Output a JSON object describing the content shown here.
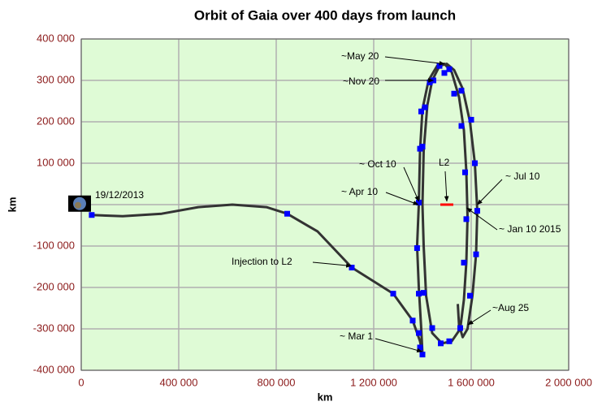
{
  "chart_data": {
    "type": "line",
    "title": "Orbit of Gaia over 400 days from launch",
    "xlabel": "km",
    "ylabel": "km",
    "xlim": [
      0,
      2000000
    ],
    "ylim": [
      -400000,
      400000
    ],
    "xticks": [
      0,
      {
        "value": 400000,
        "label": "400 000"
      },
      {
        "value": 800000,
        "label": "800 000"
      },
      {
        "value": 1200000,
        "label": "1 200 000"
      },
      {
        "value": 1600000,
        "label": "1 600 000"
      },
      {
        "value": 2000000,
        "label": "2 000 000"
      }
    ],
    "yticks": [
      {
        "value": -400000,
        "label": "-400 000"
      },
      {
        "value": -300000,
        "label": "-300 000"
      },
      {
        "value": -200000,
        "label": "-200 000"
      },
      {
        "value": -100000,
        "label": "-100 000"
      },
      0,
      {
        "value": 100000,
        "label": "100 000"
      },
      {
        "value": 200000,
        "label": "200 000"
      },
      {
        "value": 300000,
        "label": "300 000"
      },
      {
        "value": 400000,
        "label": "400 000"
      }
    ],
    "grid": true,
    "background": "#dffbd6",
    "series": [
      {
        "color": "#333333",
        "line": true,
        "markers": false,
        "x": [
          40000,
          170000,
          330000,
          480000,
          620000,
          760000,
          845000,
          970000,
          1110000,
          1280000,
          1360000,
          1390000,
          1400000,
          1395000,
          1385000,
          1378000,
          1385000,
          1390000,
          1400000,
          1425000,
          1460000,
          1490000,
          1520000,
          1550000,
          1570000,
          1580000,
          1585000,
          1580000,
          1570000,
          1555000,
          1520000,
          1480000,
          1440000,
          1415000,
          1405000,
          1400000,
          1405000,
          1420000,
          1440000,
          1470000,
          1500000,
          1530000,
          1565000,
          1595000,
          1615000,
          1625000,
          1620000,
          1605000,
          1585000,
          1565000,
          1550000,
          1545000
        ],
        "values": [
          -25000,
          -28000,
          -22000,
          -6000,
          0,
          -6000,
          -22000,
          -65000,
          -152000,
          -215000,
          -280000,
          -330000,
          -360000,
          -300000,
          -200000,
          -100000,
          0,
          130000,
          230000,
          300000,
          335000,
          340000,
          320000,
          260000,
          180000,
          80000,
          -30000,
          -140000,
          -230000,
          -300000,
          -330000,
          -335000,
          -310000,
          -220000,
          -100000,
          0,
          130000,
          240000,
          300000,
          335000,
          340000,
          325000,
          280000,
          200000,
          100000,
          -15000,
          -120000,
          -220000,
          -300000,
          -320000,
          -290000,
          -240000
        ]
      },
      {
        "color": "#0000ff",
        "line": false,
        "markers": true,
        "x": [
          43000,
          845000,
          1110000,
          1280000,
          1360000,
          1385000,
          1390000,
          1400000,
          1378000,
          1385000,
          1390000,
          1395000,
          1410000,
          1430000,
          1445000,
          1470000,
          1490000,
          1510000,
          1530000,
          1560000,
          1575000,
          1580000,
          1570000,
          1555000,
          1510000,
          1475000,
          1440000,
          1405000,
          1385000,
          1400000,
          1560000,
          1600000,
          1615000,
          1625000,
          1620000,
          1595000
        ],
        "values": [
          -25000,
          -22000,
          -152000,
          -215000,
          -280000,
          -310000,
          -345000,
          -362000,
          -105000,
          5000,
          135000,
          225000,
          235000,
          295000,
          300000,
          335000,
          318000,
          327000,
          268000,
          190000,
          78000,
          -35000,
          -140000,
          -298000,
          -330000,
          -335000,
          -298000,
          -213000,
          -215000,
          140000,
          275000,
          205000,
          100000,
          -15000,
          -120000,
          -220000
        ]
      }
    ],
    "l2_marker": {
      "x": 1500000,
      "y": 0,
      "color": "#ff0000"
    },
    "start_label": "19/12/2013",
    "annotations": [
      {
        "text": "~May 20",
        "x": 1490000,
        "y": 340000
      },
      {
        "text": "~Nov 20",
        "x": 1445000,
        "y": 300000
      },
      {
        "text": "~ Oct 10",
        "x": 1385000,
        "y": 8000
      },
      {
        "text": "~ Apr 10",
        "x": 1383000,
        "y": 0
      },
      {
        "text": "L2",
        "x": 1500000,
        "y": 8000
      },
      {
        "text": "~ Jul 10",
        "x": 1625000,
        "y": 0
      },
      {
        "text": "~ Jan 10 2015",
        "x": 1582000,
        "y": -8000
      },
      {
        "text": "Injection to L2",
        "x": 1108000,
        "y": -148000
      },
      {
        "text": "~Aug 25",
        "x": 1587000,
        "y": -290000
      },
      {
        "text": "~ Mar 1",
        "x": 1398000,
        "y": -355000
      }
    ]
  }
}
